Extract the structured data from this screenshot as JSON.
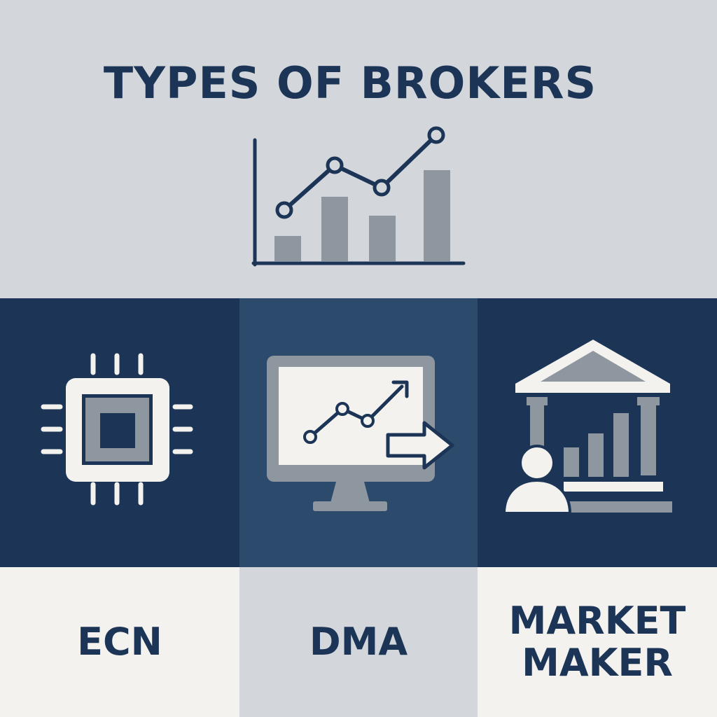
{
  "title": "TYPES OF BROKERS",
  "brokers": [
    {
      "label": "ECN",
      "icon": "cpu-chip-icon"
    },
    {
      "label": "DMA",
      "icon": "monitor-chart-arrow-icon"
    },
    {
      "label_lines": [
        "MARKET",
        "MAKER"
      ],
      "icon": "bank-person-bars-icon"
    }
  ],
  "hero_icon": "bar-line-chart-icon",
  "colors": {
    "navy": "#1c3557",
    "navy_mid": "#2c4a6b",
    "header_bg": "#d3d7dc",
    "gray": "#8e969f",
    "light": "#f3f2ee",
    "label_bg_light": "#f3f2ee",
    "label_bg_mid": "#d3d7dc"
  }
}
